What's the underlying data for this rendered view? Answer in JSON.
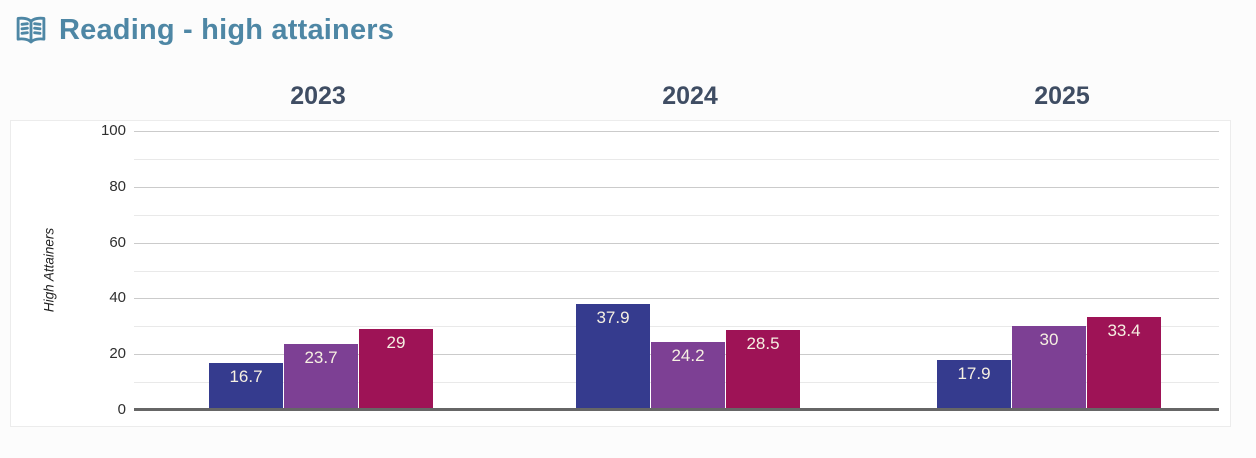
{
  "header": {
    "title": "Reading - high attainers",
    "icon": "open-book-icon",
    "title_color": "#4e87a5"
  },
  "chart_data": {
    "type": "bar",
    "title": "Reading - high attainers",
    "group_labels": [
      "2023",
      "2024",
      "2025"
    ],
    "series": [
      {
        "name": "series-blue",
        "color": "#353b8e",
        "values": [
          16.7,
          37.9,
          17.9
        ]
      },
      {
        "name": "series-purple",
        "color": "#7d4094",
        "values": [
          23.7,
          24.2,
          30
        ]
      },
      {
        "name": "series-magenta",
        "color": "#9e1356",
        "values": [
          29,
          28.5,
          33.4
        ]
      }
    ],
    "ylabel": "High Attainers",
    "ylim": [
      0,
      100
    ],
    "yticks": [
      0,
      20,
      40,
      60,
      80,
      100
    ],
    "minor_grid_step": 10,
    "legend": "none",
    "grid": "on",
    "value_label_color": "#f6f0e2",
    "axis_line_color": "#666666"
  }
}
